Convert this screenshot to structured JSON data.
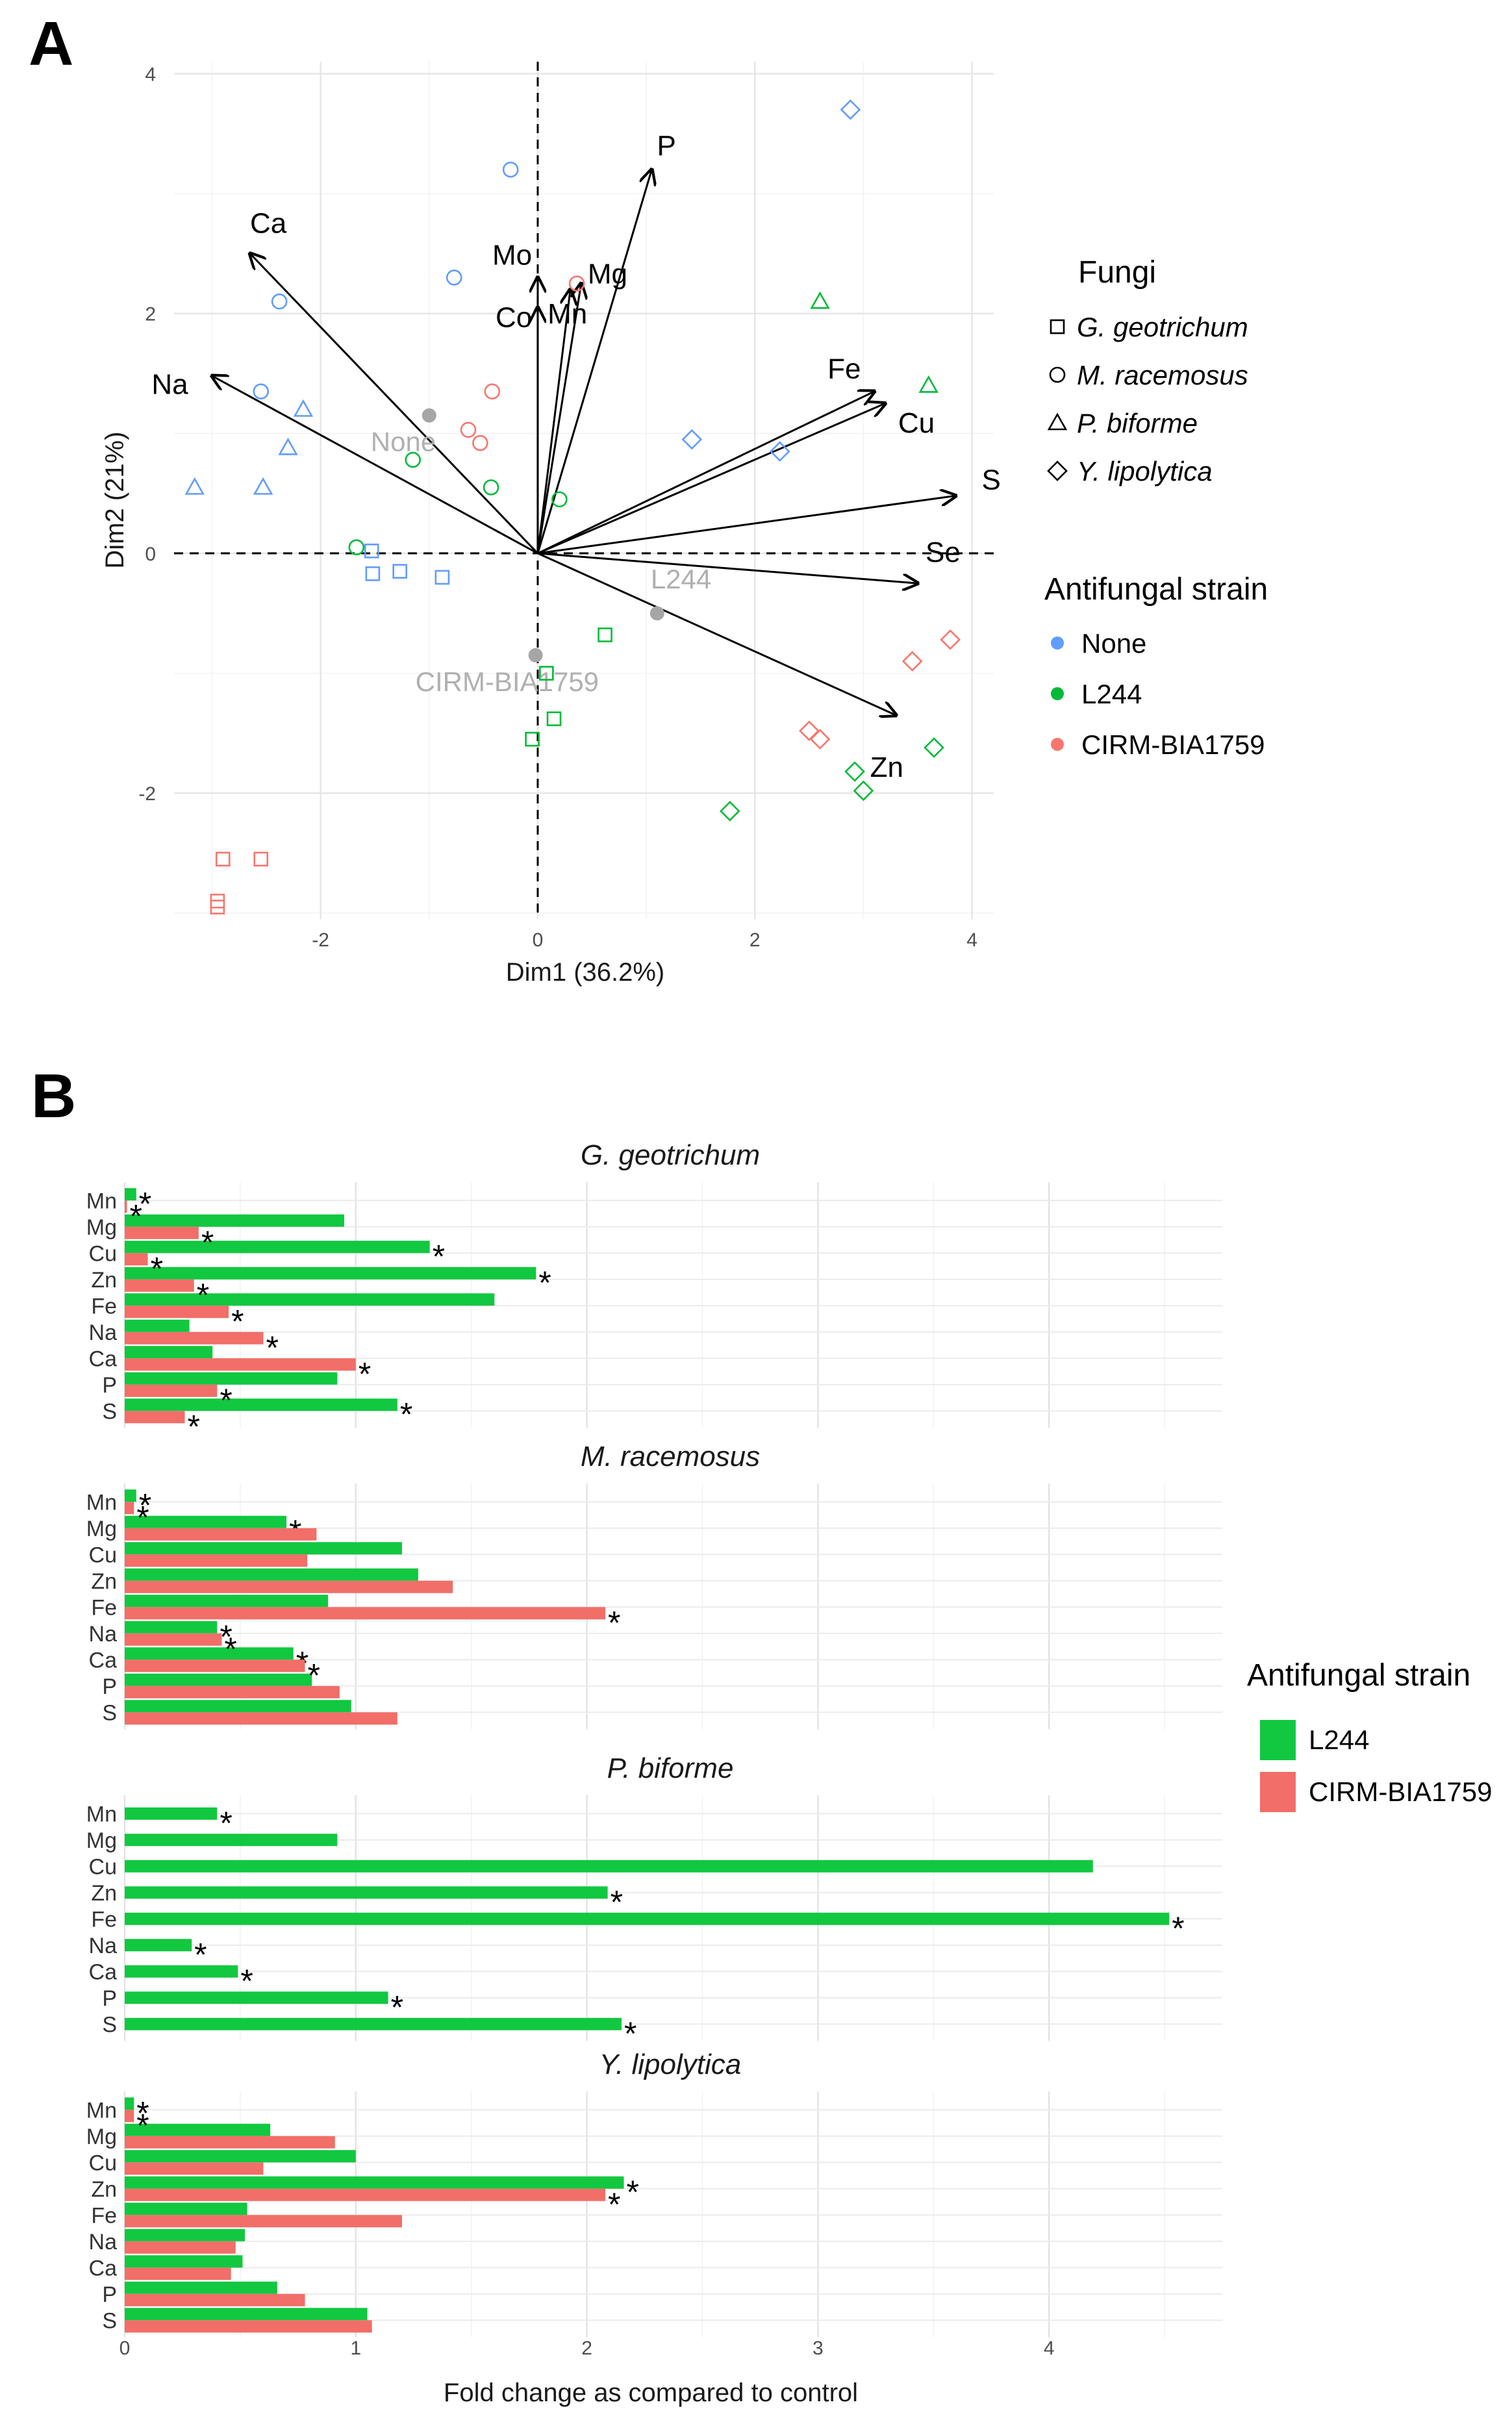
{
  "panel_a_label": "A",
  "panel_b_label": "B",
  "chart_data": [
    {
      "type": "scatter",
      "subtype": "pca-biplot",
      "panel": "A",
      "xlabel": "Dim1 (36.2%)",
      "ylabel": "Dim2 (21%)",
      "xlim": [
        -3.35,
        4.2
      ],
      "ylim": [
        -3.05,
        4.1
      ],
      "xticks": [
        -2,
        0,
        2,
        4
      ],
      "yticks": [
        -2,
        0,
        2,
        4
      ],
      "vectors": [
        {
          "label": "P",
          "x": 1.05,
          "y": 3.2
        },
        {
          "label": "Ca",
          "x": -2.65,
          "y": 2.5
        },
        {
          "label": "Mo",
          "x": 0.0,
          "y": 2.3
        },
        {
          "label": "Co",
          "x": 0.0,
          "y": 2.05
        },
        {
          "label": "Mg",
          "x": 0.4,
          "y": 2.25
        },
        {
          "label": "Mn",
          "x": 0.3,
          "y": 2.2
        },
        {
          "label": "Na",
          "x": -3.0,
          "y": 1.48
        },
        {
          "label": "Fe",
          "x": 3.1,
          "y": 1.35
        },
        {
          "label": "Cu",
          "x": 3.2,
          "y": 1.25
        },
        {
          "label": "S",
          "x": 3.85,
          "y": 0.48
        },
        {
          "label": "Se",
          "x": 3.5,
          "y": -0.25
        },
        {
          "label": "Zn",
          "x": 3.3,
          "y": -1.35
        }
      ],
      "centroids": [
        {
          "label": "None",
          "x": -1.0,
          "y": 1.15
        },
        {
          "label": "L244",
          "x": 1.1,
          "y": -0.5
        },
        {
          "label": "CIRM-BIA1759",
          "x": -0.02,
          "y": -0.85
        }
      ],
      "points": [
        {
          "fungus": "Y. lipolytica",
          "strain": "None",
          "x": 2.88,
          "y": 3.7
        },
        {
          "fungus": "Y. lipolytica",
          "strain": "None",
          "x": 1.42,
          "y": 0.95
        },
        {
          "fungus": "Y. lipolytica",
          "strain": "None",
          "x": 2.23,
          "y": 0.85
        },
        {
          "fungus": "M. racemosus",
          "strain": "None",
          "x": -0.25,
          "y": 3.2
        },
        {
          "fungus": "M. racemosus",
          "strain": "None",
          "x": -0.77,
          "y": 2.3
        },
        {
          "fungus": "M. racemosus",
          "strain": "None",
          "x": -2.38,
          "y": 2.1
        },
        {
          "fungus": "M. racemosus",
          "strain": "None",
          "x": -2.55,
          "y": 1.35
        },
        {
          "fungus": "P. biforme",
          "strain": "None",
          "x": -2.16,
          "y": 1.2
        },
        {
          "fungus": "P. biforme",
          "strain": "None",
          "x": -2.3,
          "y": 0.88
        },
        {
          "fungus": "P. biforme",
          "strain": "None",
          "x": -3.16,
          "y": 0.55
        },
        {
          "fungus": "P. biforme",
          "strain": "None",
          "x": -2.53,
          "y": 0.55
        },
        {
          "fungus": "G. geotrichum",
          "strain": "None",
          "x": -1.53,
          "y": 0.02
        },
        {
          "fungus": "G. geotrichum",
          "strain": "None",
          "x": -1.52,
          "y": -0.17
        },
        {
          "fungus": "G. geotrichum",
          "strain": "None",
          "x": -1.27,
          "y": -0.15
        },
        {
          "fungus": "G. geotrichum",
          "strain": "None",
          "x": -0.88,
          "y": -0.2
        },
        {
          "fungus": "M. racemosus",
          "strain": "CIRM-BIA1759",
          "x": 0.36,
          "y": 2.25
        },
        {
          "fungus": "M. racemosus",
          "strain": "CIRM-BIA1759",
          "x": -0.42,
          "y": 1.35
        },
        {
          "fungus": "M. racemosus",
          "strain": "CIRM-BIA1759",
          "x": -0.64,
          "y": 1.03
        },
        {
          "fungus": "M. racemosus",
          "strain": "CIRM-BIA1759",
          "x": -0.53,
          "y": 0.92
        },
        {
          "fungus": "Y. lipolytica",
          "strain": "CIRM-BIA1759",
          "x": 3.8,
          "y": -0.72
        },
        {
          "fungus": "Y. lipolytica",
          "strain": "CIRM-BIA1759",
          "x": 3.45,
          "y": -0.9
        },
        {
          "fungus": "Y. lipolytica",
          "strain": "CIRM-BIA1759",
          "x": 2.5,
          "y": -1.48
        },
        {
          "fungus": "Y. lipolytica",
          "strain": "CIRM-BIA1759",
          "x": 2.6,
          "y": -1.55
        },
        {
          "fungus": "G. geotrichum",
          "strain": "CIRM-BIA1759",
          "x": -2.9,
          "y": -2.55
        },
        {
          "fungus": "G. geotrichum",
          "strain": "CIRM-BIA1759",
          "x": -2.55,
          "y": -2.55
        },
        {
          "fungus": "G. geotrichum",
          "strain": "CIRM-BIA1759",
          "x": -2.95,
          "y": -2.9
        },
        {
          "fungus": "G. geotrichum",
          "strain": "CIRM-BIA1759",
          "x": -2.95,
          "y": -2.95
        },
        {
          "fungus": "P. biforme",
          "strain": "L244",
          "x": 2.6,
          "y": 2.1
        },
        {
          "fungus": "P. biforme",
          "strain": "L244",
          "x": 3.6,
          "y": 1.4
        },
        {
          "fungus": "M. racemosus",
          "strain": "L244",
          "x": -1.15,
          "y": 0.78
        },
        {
          "fungus": "M. racemosus",
          "strain": "L244",
          "x": -0.43,
          "y": 0.55
        },
        {
          "fungus": "M. racemosus",
          "strain": "L244",
          "x": 0.2,
          "y": 0.45
        },
        {
          "fungus": "M. racemosus",
          "strain": "L244",
          "x": -1.67,
          "y": 0.05
        },
        {
          "fungus": "G. geotrichum",
          "strain": "L244",
          "x": 0.62,
          "y": -0.68
        },
        {
          "fungus": "G. geotrichum",
          "strain": "L244",
          "x": 0.08,
          "y": -1.0
        },
        {
          "fungus": "G. geotrichum",
          "strain": "L244",
          "x": 0.15,
          "y": -1.38
        },
        {
          "fungus": "G. geotrichum",
          "strain": "L244",
          "x": -0.05,
          "y": -1.55
        },
        {
          "fungus": "Y. lipolytica",
          "strain": "L244",
          "x": 3.65,
          "y": -1.62
        },
        {
          "fungus": "Y. lipolytica",
          "strain": "L244",
          "x": 2.92,
          "y": -1.82
        },
        {
          "fungus": "Y. lipolytica",
          "strain": "L244",
          "x": 3.0,
          "y": -1.98
        },
        {
          "fungus": "Y. lipolytica",
          "strain": "L244",
          "x": 1.77,
          "y": -2.15
        }
      ],
      "legend_fungi": {
        "title": "Fungi",
        "items": [
          {
            "label": "G. geotrichum",
            "shape": "square"
          },
          {
            "label": "M. racemosus",
            "shape": "circle"
          },
          {
            "label": "P. biforme",
            "shape": "triangle"
          },
          {
            "label": "Y. lipolytica",
            "shape": "diamond"
          }
        ]
      },
      "legend_strain": {
        "title": "Antifungal strain",
        "items": [
          {
            "label": "None",
            "color": "#619CFF"
          },
          {
            "label": "L244",
            "color": "#00BA38"
          },
          {
            "label": "CIRM-BIA1759",
            "color": "#F8766D"
          }
        ]
      },
      "centroid_color": "#a6a6a6"
    },
    {
      "type": "bar",
      "orientation": "horizontal",
      "panel": "B",
      "xlabel": "Fold change as compared to control",
      "xlim": [
        0,
        4.75
      ],
      "xticks": [
        0,
        1,
        2,
        3,
        4
      ],
      "categories": [
        "Mn",
        "Mg",
        "Cu",
        "Zn",
        "Fe",
        "Na",
        "Ca",
        "P",
        "S"
      ],
      "legend": {
        "title": "Antifungal strain",
        "items": [
          {
            "label": "L244",
            "color": "#11C840"
          },
          {
            "label": "CIRM-BIA1759",
            "color": "#F26E68"
          }
        ]
      },
      "star_symbol": "*",
      "facets": [
        {
          "title": "G. geotrichum",
          "series": [
            {
              "name": "L244",
              "values": [
                0.05,
                0.95,
                1.32,
                1.78,
                1.6,
                0.28,
                0.38,
                0.92,
                1.18
              ],
              "significant": [
                true,
                false,
                true,
                true,
                false,
                false,
                false,
                false,
                true
              ]
            },
            {
              "name": "CIRM-BIA1759",
              "values": [
                0.01,
                0.32,
                0.1,
                0.3,
                0.45,
                0.6,
                1.0,
                0.4,
                0.26
              ],
              "significant": [
                true,
                true,
                true,
                true,
                true,
                true,
                true,
                true,
                true
              ]
            }
          ]
        },
        {
          "title": "M. racemosus",
          "series": [
            {
              "name": "L244",
              "values": [
                0.05,
                0.7,
                1.2,
                1.27,
                0.88,
                0.4,
                0.73,
                0.81,
                0.98
              ],
              "significant": [
                true,
                true,
                false,
                false,
                false,
                true,
                true,
                false,
                false
              ]
            },
            {
              "name": "CIRM-BIA1759",
              "values": [
                0.04,
                0.83,
                0.79,
                1.42,
                2.08,
                0.42,
                0.78,
                0.93,
                1.18
              ],
              "significant": [
                true,
                false,
                false,
                false,
                true,
                true,
                true,
                false,
                false
              ]
            }
          ]
        },
        {
          "title": "P. biforme",
          "series": [
            {
              "name": "L244",
              "values": [
                0.4,
                0.92,
                4.19,
                2.09,
                4.52,
                0.29,
                0.49,
                1.14,
                2.15
              ],
              "significant": [
                true,
                false,
                false,
                true,
                true,
                true,
                true,
                true,
                true
              ]
            }
          ]
        },
        {
          "title": "Y. lipolytica",
          "series": [
            {
              "name": "L244",
              "values": [
                0.04,
                0.63,
                1.0,
                2.16,
                0.53,
                0.52,
                0.51,
                0.66,
                1.05
              ],
              "significant": [
                true,
                false,
                false,
                true,
                false,
                false,
                false,
                false,
                false
              ]
            },
            {
              "name": "CIRM-BIA1759",
              "values": [
                0.04,
                0.91,
                0.6,
                2.08,
                1.2,
                0.48,
                0.46,
                0.78,
                1.07
              ],
              "significant": [
                true,
                false,
                false,
                true,
                false,
                false,
                false,
                false,
                false
              ]
            }
          ]
        }
      ]
    }
  ]
}
